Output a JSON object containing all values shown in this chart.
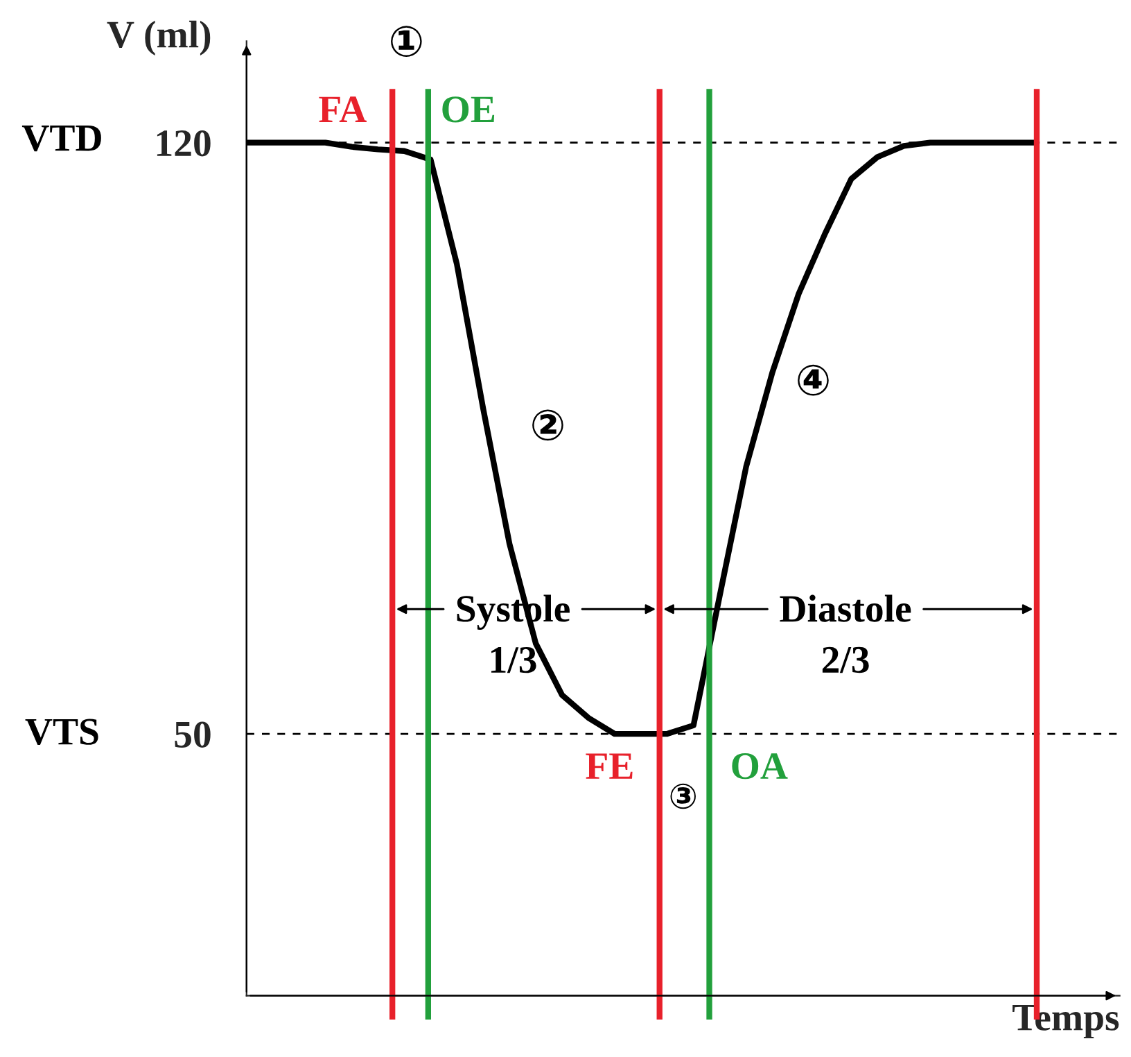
{
  "chart_data": {
    "type": "line",
    "ylabel": "V (ml)",
    "xlabel": "Temps",
    "categories": [
      null,
      null,
      null,
      null,
      null,
      null,
      null,
      null,
      null,
      null,
      null,
      null,
      null,
      null,
      null,
      null,
      null,
      null,
      null,
      null,
      null,
      null,
      null,
      null,
      null,
      null,
      null,
      null,
      null,
      null,
      null
    ],
    "series": [
      {
        "color": "#000000",
        "values": [
          120,
          120,
          120,
          120,
          119.5,
          119.2,
          119,
          118,
          105.6,
          88.5,
          72.5,
          60.7,
          54.6,
          51.9,
          50,
          50,
          50,
          51,
          66.4,
          81.6,
          92.8,
          102.1,
          109.2,
          115.7,
          118.3,
          119.6,
          120,
          120,
          120,
          120,
          120
        ]
      }
    ],
    "ylim": [
      19,
      132
    ],
    "yticks": [
      50,
      120
    ],
    "tick_labels": "y",
    "grid": false,
    "legend": false,
    "marker": "none",
    "line_style": "solid",
    "ref_lines": [
      {
        "axis": "y",
        "value": 120,
        "color": "#000000",
        "line_style": "dashed"
      },
      {
        "axis": "y",
        "value": 50,
        "color": "#000000",
        "line_style": "dashed"
      }
    ],
    "annotations": [
      "①",
      "②",
      "③",
      "④",
      "Systole\n1/3",
      "Diastole\n2/3",
      "FA",
      "OE",
      "FE",
      "OA",
      "VTD",
      "VTS"
    ]
  }
}
